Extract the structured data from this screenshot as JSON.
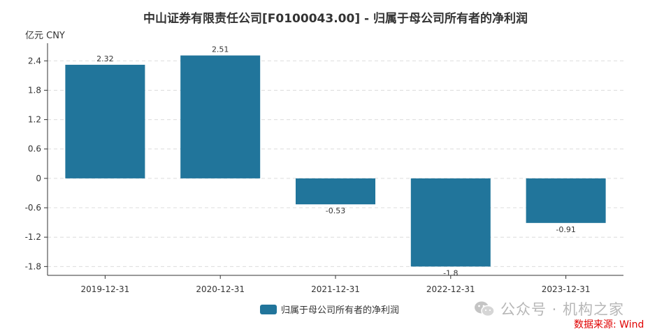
{
  "chart_data": {
    "type": "bar",
    "title": "中山证券有限责任公司[F0100043.00] - 归属于母公司所有者的净利润",
    "ylabel": "亿元  CNY",
    "categories": [
      "2019-12-31",
      "2020-12-31",
      "2021-12-31",
      "2022-12-31",
      "2023-12-31"
    ],
    "series": [
      {
        "name": "归属于母公司所有者的净利润",
        "values": [
          2.32,
          2.51,
          -0.53,
          -1.8,
          -0.91
        ],
        "color": "#21759b"
      }
    ],
    "data_labels": [
      "2.32",
      "2.51",
      "-0.53",
      "-1.8",
      "-0.91"
    ],
    "yticks": [
      "2.4",
      "1.8",
      "1.2",
      "0.6",
      "0",
      "-0.6",
      "-1.2",
      "-1.8"
    ],
    "ytick_values": [
      2.4,
      1.8,
      1.2,
      0.6,
      0,
      -0.6,
      -1.2,
      -1.8
    ],
    "ylim": [
      -1.98,
      2.76
    ],
    "grid": true,
    "legend_position": "bottom-center"
  },
  "watermark": "公众号 · 机构之家",
  "watermark_icon": "wechat-icon",
  "source": "数据来源: Wind"
}
